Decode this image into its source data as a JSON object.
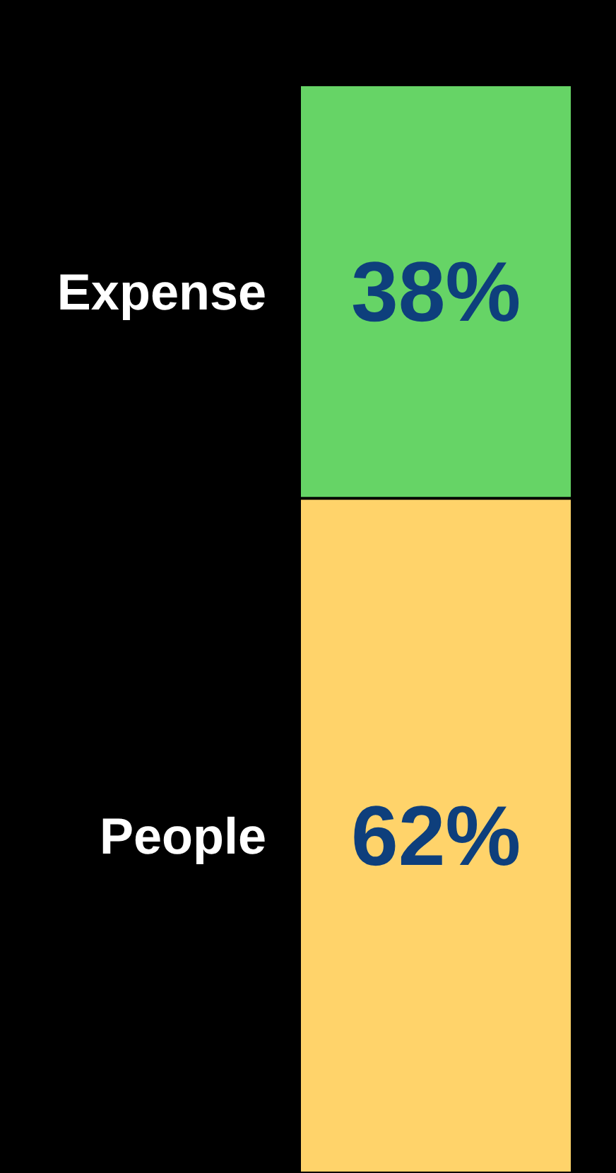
{
  "chart_data": {
    "type": "bar",
    "stacked": true,
    "categories": [
      null
    ],
    "legend": false,
    "series": [
      {
        "name": "People",
        "color": "#ffd36a",
        "values": [
          62
        ],
        "value_labels": [
          "62%"
        ]
      },
      {
        "name": "Expense",
        "color": "#66d466",
        "values": [
          38
        ],
        "value_labels": [
          "38%"
        ]
      }
    ]
  }
}
